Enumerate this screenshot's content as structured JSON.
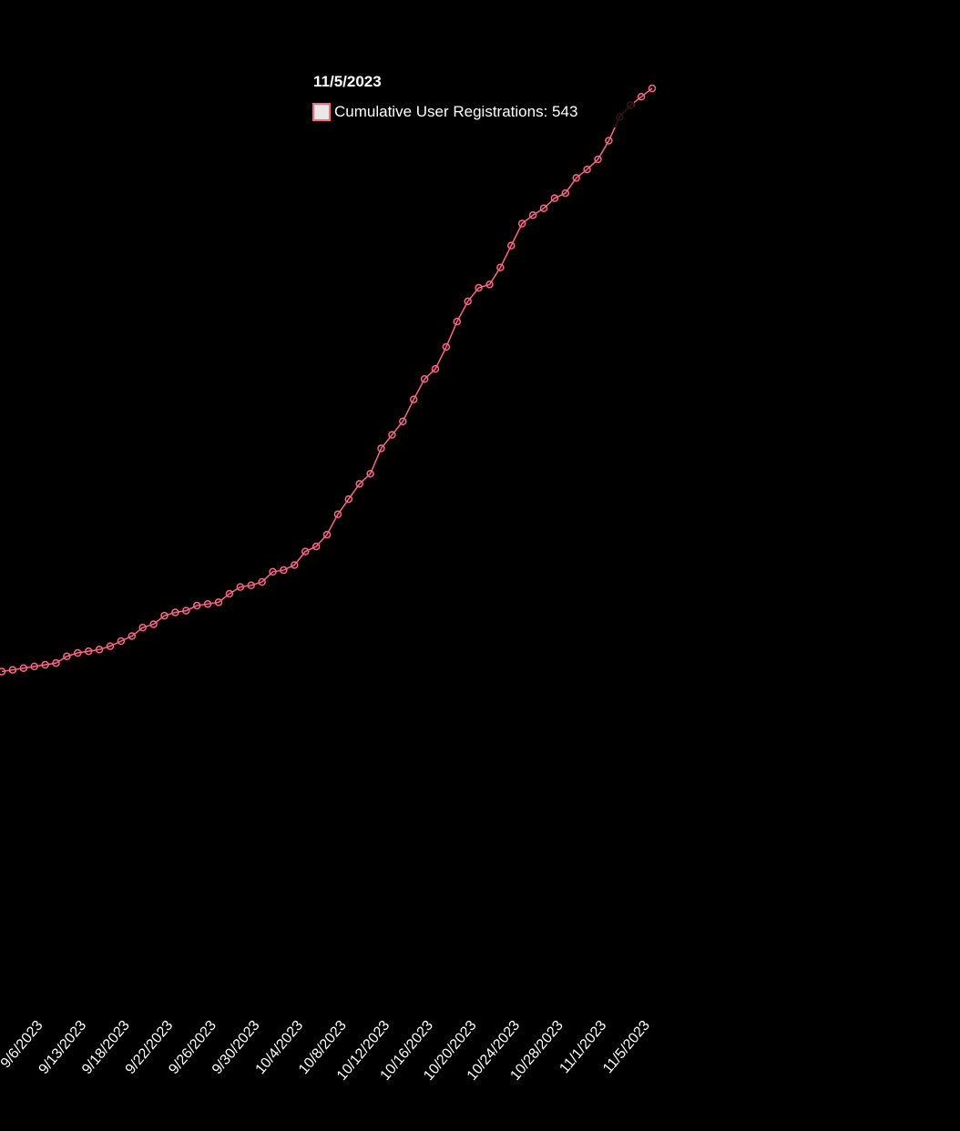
{
  "chart_data": {
    "type": "line",
    "title": "",
    "xlabel": "",
    "ylabel": "",
    "ylim": [
      0,
      550
    ],
    "grid": false,
    "series": [
      {
        "name": "Cumulative User Registrations",
        "color": "#ff6384",
        "values": [
          198,
          199,
          200,
          201,
          202,
          203,
          207,
          209,
          210,
          211,
          213,
          216,
          219,
          224,
          226,
          231,
          233,
          234,
          237,
          238,
          239,
          244,
          248,
          249,
          251,
          257,
          258,
          261,
          269,
          272,
          279,
          291,
          300,
          309,
          315,
          330,
          338,
          346,
          359,
          371,
          377,
          390,
          405,
          417,
          425,
          427,
          437,
          450,
          463,
          468,
          472,
          478,
          481,
          490,
          495,
          501,
          512,
          526,
          533,
          538,
          543
        ]
      }
    ],
    "x_ticks": [
      {
        "index": 4,
        "label": "9/6/2023"
      },
      {
        "index": 8,
        "label": "9/13/2023"
      },
      {
        "index": 12,
        "label": "9/18/2023"
      },
      {
        "index": 16,
        "label": "9/22/2023"
      },
      {
        "index": 20,
        "label": "9/26/2023"
      },
      {
        "index": 24,
        "label": "9/30/2023"
      },
      {
        "index": 28,
        "label": "10/4/2023"
      },
      {
        "index": 32,
        "label": "10/8/2023"
      },
      {
        "index": 36,
        "label": "10/12/2023"
      },
      {
        "index": 40,
        "label": "10/16/2023"
      },
      {
        "index": 44,
        "label": "10/20/2023"
      },
      {
        "index": 48,
        "label": "10/24/2023"
      },
      {
        "index": 52,
        "label": "10/28/2023"
      },
      {
        "index": 56,
        "label": "11/1/2023"
      },
      {
        "index": 60,
        "label": "11/5/2023"
      }
    ]
  },
  "tooltip": {
    "title": "11/5/2023",
    "label": "Cumulative User Registrations: 543",
    "background": "#000000cc"
  }
}
